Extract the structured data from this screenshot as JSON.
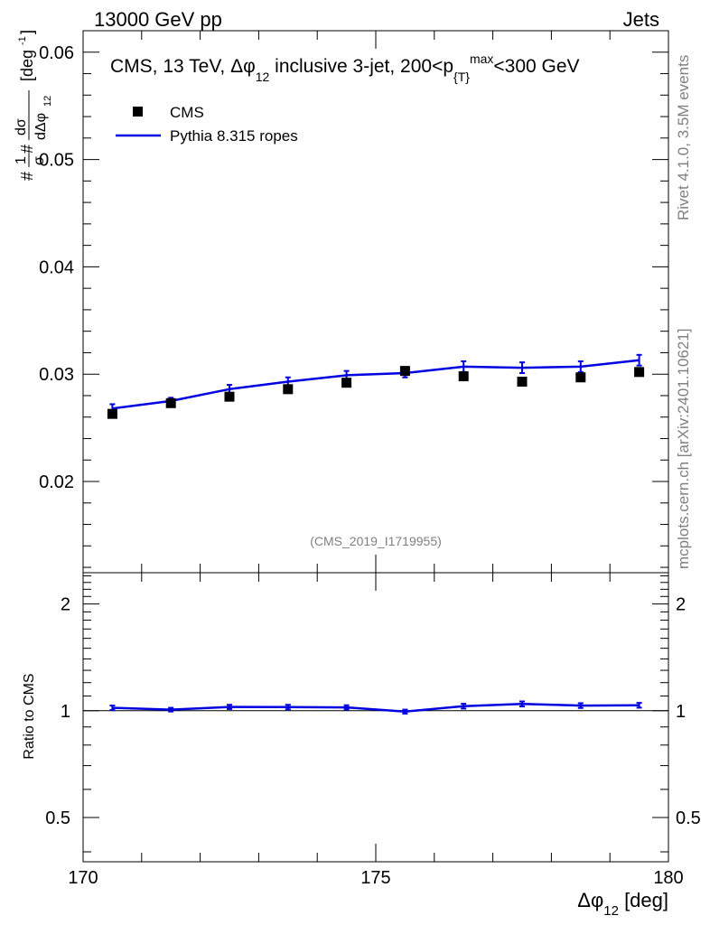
{
  "header": {
    "left": "13000 GeV pp",
    "right": "Jets"
  },
  "side_labels": {
    "rivet": "Rivet 4.1.0,  3.5M events",
    "mcplots": "mcplots.cern.ch [arXiv:2401.10621]"
  },
  "plot_title": {
    "prefix": "CMS, 13 TeV, ",
    "dphi": "Δφ",
    "sub12": "12",
    "middle": " inclusive 3-jet, 200<p",
    "subT": "{T}",
    "supmax": "max",
    "suffix": "<300 GeV"
  },
  "analysis_id": "(CMS_2019_I1719955)",
  "legend": {
    "data_label": "CMS",
    "mc_label": "Pythia 8.315 ropes"
  },
  "colors": {
    "data": "#000000",
    "mc": "#0000e0",
    "grey": "#808080"
  },
  "axes": {
    "x_label_main": "Δφ",
    "x_label_sub": "12",
    "x_label_unit": " [deg]",
    "y_label": "#1/σ #dσ/dΔφ12 [deg-1]",
    "ratio_label": "Ratio to CMS"
  },
  "chart_data": [
    {
      "type": "scatter",
      "panel": "main",
      "title": "CMS, 13 TeV, Δφ12 inclusive 3-jet, 200<p{T}max<300 GeV",
      "xlabel": "Δφ12 [deg]",
      "ylabel": "1/σ dσ/dΔφ12 [deg^-1]",
      "xlim": [
        170,
        180
      ],
      "ylim": [
        0.0115,
        0.062
      ],
      "x": [
        170.5,
        171.5,
        172.5,
        173.5,
        174.5,
        175.5,
        176.5,
        177.5,
        178.5,
        179.5
      ],
      "xticks": [
        "170",
        "175",
        "180"
      ],
      "yticks": [
        "0.02",
        "0.03",
        "0.04",
        "0.05",
        "0.06"
      ],
      "series": [
        {
          "name": "CMS",
          "style": "markers",
          "values": [
            0.0263,
            0.0273,
            0.0279,
            0.0286,
            0.0292,
            0.0303,
            0.0298,
            0.0293,
            0.0297,
            0.0302
          ]
        },
        {
          "name": "Pythia 8.315 ropes",
          "style": "line",
          "values": [
            0.0268,
            0.0275,
            0.0286,
            0.0293,
            0.0299,
            0.0301,
            0.0307,
            0.0306,
            0.0307,
            0.0313
          ],
          "errors": [
            0.0004,
            0.0003,
            0.0004,
            0.0004,
            0.0004,
            0.0004,
            0.0005,
            0.0005,
            0.0005,
            0.0005
          ]
        }
      ]
    },
    {
      "type": "line",
      "panel": "ratio",
      "ylabel": "Ratio to CMS",
      "xlim": [
        170,
        180
      ],
      "ylim": [
        0.375,
        2.45
      ],
      "ylog": true,
      "x": [
        170.5,
        171.5,
        172.5,
        173.5,
        174.5,
        175.5,
        176.5,
        177.5,
        178.5,
        179.5
      ],
      "xticks": [
        "170",
        "175",
        "180"
      ],
      "yticks": [
        "0.5",
        "1",
        "2"
      ],
      "reference": 1,
      "series": [
        {
          "name": "Pythia 8.315 ropes / CMS",
          "values": [
            1.019,
            1.007,
            1.025,
            1.024,
            1.022,
            0.994,
            1.03,
            1.045,
            1.034,
            1.036
          ],
          "errors": [
            0.015,
            0.012,
            0.014,
            0.015,
            0.014,
            0.013,
            0.016,
            0.017,
            0.016,
            0.016
          ]
        }
      ]
    }
  ]
}
